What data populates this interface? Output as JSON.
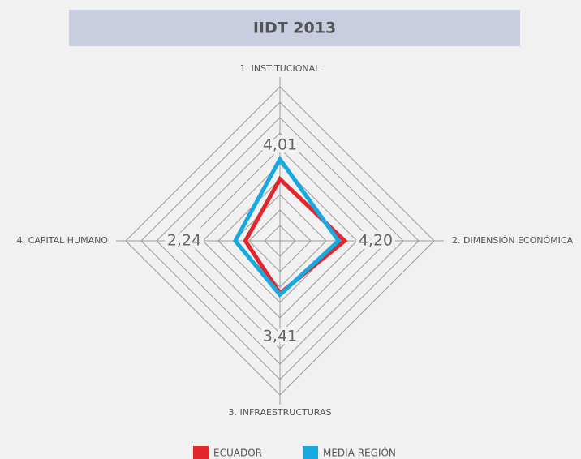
{
  "chart_data": {
    "type": "radar",
    "title": "IIDT 2013",
    "categories": [
      "1. INSTITUCIONAL",
      "2. DIMENSIÓN ECONÓMICA",
      "3. INFRAESTRUCTURAS",
      "4. CAPITAL HUMANO"
    ],
    "series": [
      {
        "name": "ECUADOR",
        "color": "#e2262b",
        "values": [
          4.01,
          4.2,
          3.41,
          2.24
        ],
        "value_labels": [
          "4,01",
          "4,20",
          "3,41",
          "2,24"
        ]
      },
      {
        "name": "MEDIA REGIÓN",
        "color": "#17a9e1",
        "values": [
          5.3,
          3.8,
          3.5,
          2.9
        ]
      }
    ],
    "rlim": [
      0,
      10
    ],
    "rticks": [
      1,
      2,
      3,
      4,
      5,
      6,
      7,
      8,
      9,
      10
    ],
    "grid": true
  }
}
